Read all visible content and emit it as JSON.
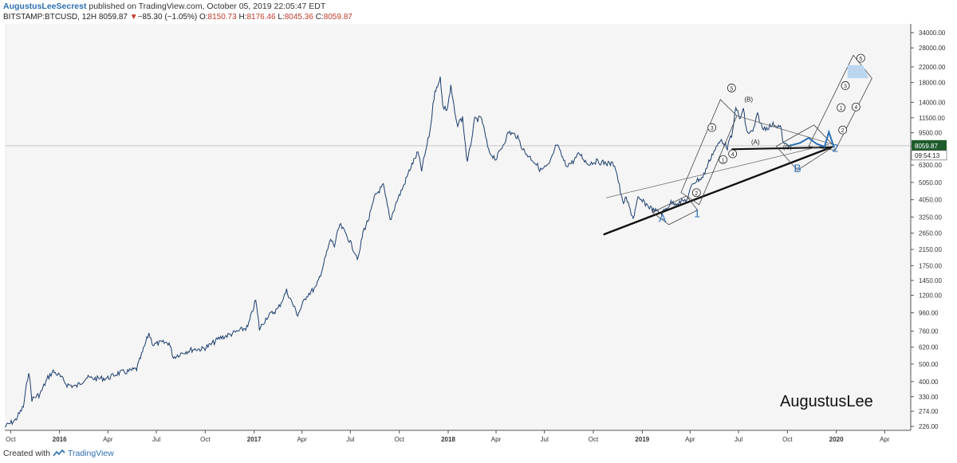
{
  "header": {
    "author": "AugustusLeeSecrest",
    "published_text": " published on TradingView.com, October 05, 2019 22:05:47 EDT",
    "symbol": "BITSTAMP:BTCUSD, 12H",
    "last": "8059.87",
    "change_arrow": "▼",
    "change": "−85.30 (−1.05%)",
    "o_label": "O:",
    "o_value": "8150.73",
    "h_label": "H:",
    "h_value": "8176.46",
    "l_label": "L:",
    "l_value": "8045.36",
    "c_label": "C:",
    "c_value": "8059.87"
  },
  "footer": {
    "created_with": "Created with",
    "brand": "TradingView"
  },
  "colors": {
    "price_line": "#1c3d6e",
    "plot_bg": "#f5f5f5",
    "current_price_badge": "#1e5c2e",
    "wave_blue": "#2c6fb3",
    "target_zone": "#bcd6f0"
  },
  "chart_data": {
    "type": "line",
    "title": "",
    "xlabel": "",
    "ylabel": "",
    "y_scale": "log",
    "x_range": [
      "2015-09-20",
      "2020-05-20"
    ],
    "y_range": [
      215,
      38000
    ],
    "grid": true,
    "y_ticks": [
      "34000.00",
      "28000.00",
      "22000.00",
      "18000.00",
      "14000.00",
      "11500.00",
      "9500.00",
      "8000.00",
      "6300.00",
      "5050.00",
      "4050.00",
      "3250.00",
      "2650.00",
      "2150.00",
      "1750.00",
      "1450.00",
      "1200.00",
      "960.00",
      "760.00",
      "620.00",
      "500.00",
      "400.00",
      "330.00",
      "274.00",
      "226.00"
    ],
    "x_ticks": [
      {
        "label": "Oct",
        "date": "2015-10-01",
        "bold": false
      },
      {
        "label": "2016",
        "date": "2016-01-01",
        "bold": true
      },
      {
        "label": "Apr",
        "date": "2016-04-01",
        "bold": false
      },
      {
        "label": "Jul",
        "date": "2016-07-01",
        "bold": false
      },
      {
        "label": "Oct",
        "date": "2016-10-01",
        "bold": false
      },
      {
        "label": "2017",
        "date": "2017-01-01",
        "bold": true
      },
      {
        "label": "Apr",
        "date": "2017-04-01",
        "bold": false
      },
      {
        "label": "Jul",
        "date": "2017-07-01",
        "bold": false
      },
      {
        "label": "Oct",
        "date": "2017-10-01",
        "bold": false
      },
      {
        "label": "2018",
        "date": "2018-01-01",
        "bold": true
      },
      {
        "label": "Apr",
        "date": "2018-04-01",
        "bold": false
      },
      {
        "label": "Jul",
        "date": "2018-07-01",
        "bold": false
      },
      {
        "label": "Oct",
        "date": "2018-10-01",
        "bold": false
      },
      {
        "label": "2019",
        "date": "2019-01-01",
        "bold": true
      },
      {
        "label": "Apr",
        "date": "2019-04-01",
        "bold": false
      },
      {
        "label": "Jul",
        "date": "2019-07-01",
        "bold": false
      },
      {
        "label": "Oct",
        "date": "2019-10-01",
        "bold": false
      },
      {
        "label": "2020",
        "date": "2020-01-01",
        "bold": true
      },
      {
        "label": "Apr",
        "date": "2020-04-01",
        "bold": false
      }
    ],
    "current_price": {
      "value": 8059.87,
      "label": "8059.87",
      "countdown": "09:54:13"
    },
    "series": [
      {
        "points": [
          [
            "2015-09-20",
            225
          ],
          [
            "2015-10-10",
            245
          ],
          [
            "2015-10-25",
            290
          ],
          [
            "2015-11-04",
            460
          ],
          [
            "2015-11-10",
            320
          ],
          [
            "2015-11-25",
            340
          ],
          [
            "2015-12-10",
            420
          ],
          [
            "2015-12-20",
            455
          ],
          [
            "2016-01-01",
            430
          ],
          [
            "2016-01-15",
            385
          ],
          [
            "2016-02-01",
            375
          ],
          [
            "2016-02-20",
            420
          ],
          [
            "2016-03-10",
            415
          ],
          [
            "2016-04-01",
            418
          ],
          [
            "2016-04-20",
            445
          ],
          [
            "2016-05-10",
            455
          ],
          [
            "2016-05-25",
            470
          ],
          [
            "2016-06-05",
            580
          ],
          [
            "2016-06-17",
            740
          ],
          [
            "2016-06-25",
            640
          ],
          [
            "2016-07-10",
            655
          ],
          [
            "2016-07-25",
            655
          ],
          [
            "2016-08-02",
            545
          ],
          [
            "2016-08-20",
            580
          ],
          [
            "2016-09-10",
            605
          ],
          [
            "2016-09-25",
            605
          ],
          [
            "2016-10-10",
            635
          ],
          [
            "2016-10-28",
            695
          ],
          [
            "2016-11-15",
            725
          ],
          [
            "2016-12-05",
            765
          ],
          [
            "2016-12-20",
            800
          ],
          [
            "2017-01-04",
            1130
          ],
          [
            "2017-01-11",
            780
          ],
          [
            "2017-01-25",
            910
          ],
          [
            "2017-02-15",
            1010
          ],
          [
            "2017-03-03",
            1270
          ],
          [
            "2017-03-24",
            935
          ],
          [
            "2017-04-10",
            1200
          ],
          [
            "2017-04-28",
            1330
          ],
          [
            "2017-05-10",
            1720
          ],
          [
            "2017-05-25",
            2450
          ],
          [
            "2017-06-01",
            2250
          ],
          [
            "2017-06-11",
            2950
          ],
          [
            "2017-06-25",
            2550
          ],
          [
            "2017-07-16",
            1900
          ],
          [
            "2017-07-25",
            2700
          ],
          [
            "2017-08-05",
            3200
          ],
          [
            "2017-08-17",
            4300
          ],
          [
            "2017-09-01",
            4850
          ],
          [
            "2017-09-14",
            3100
          ],
          [
            "2017-09-25",
            3900
          ],
          [
            "2017-10-10",
            4900
          ],
          [
            "2017-10-21",
            6000
          ],
          [
            "2017-11-05",
            7400
          ],
          [
            "2017-11-12",
            5900
          ],
          [
            "2017-11-28",
            9800
          ],
          [
            "2017-12-07",
            16500
          ],
          [
            "2017-12-12",
            16800
          ],
          [
            "2017-12-17",
            19700
          ],
          [
            "2017-12-22",
            13200
          ],
          [
            "2017-12-30",
            12800
          ],
          [
            "2018-01-06",
            17000
          ],
          [
            "2018-01-17",
            10500
          ],
          [
            "2018-01-28",
            11500
          ],
          [
            "2018-02-06",
            6400
          ],
          [
            "2018-02-20",
            11200
          ],
          [
            "2018-03-05",
            11400
          ],
          [
            "2018-03-18",
            7500
          ],
          [
            "2018-04-01",
            6800
          ],
          [
            "2018-04-12",
            7900
          ],
          [
            "2018-04-25",
            9600
          ],
          [
            "2018-05-10",
            9100
          ],
          [
            "2018-05-25",
            7400
          ],
          [
            "2018-06-10",
            6700
          ],
          [
            "2018-06-24",
            5900
          ],
          [
            "2018-07-10",
            6300
          ],
          [
            "2018-07-24",
            8200
          ],
          [
            "2018-08-10",
            6300
          ],
          [
            "2018-08-22",
            6500
          ],
          [
            "2018-09-05",
            7300
          ],
          [
            "2018-09-20",
            6400
          ],
          [
            "2018-10-05",
            6600
          ],
          [
            "2018-10-25",
            6450
          ],
          [
            "2018-11-10",
            6350
          ],
          [
            "2018-11-15",
            5500
          ],
          [
            "2018-11-25",
            3900
          ],
          [
            "2018-12-02",
            4100
          ],
          [
            "2018-12-15",
            3200
          ],
          [
            "2018-12-24",
            4100
          ],
          [
            "2019-01-05",
            3900
          ],
          [
            "2019-01-22",
            3550
          ],
          [
            "2019-02-07",
            3400
          ],
          [
            "2019-02-24",
            3900
          ],
          [
            "2019-03-12",
            3900
          ],
          [
            "2019-03-28",
            4100
          ],
          [
            "2019-04-05",
            5000
          ],
          [
            "2019-04-25",
            5400
          ],
          [
            "2019-05-12",
            7200
          ],
          [
            "2019-05-30",
            8700
          ],
          [
            "2019-06-10",
            7900
          ],
          [
            "2019-06-20",
            9500
          ],
          [
            "2019-06-26",
            13500
          ],
          [
            "2019-07-03",
            11200
          ],
          [
            "2019-07-10",
            12800
          ],
          [
            "2019-07-17",
            9500
          ],
          [
            "2019-07-28",
            9600
          ],
          [
            "2019-08-06",
            12000
          ],
          [
            "2019-08-15",
            10000
          ],
          [
            "2019-08-25",
            10200
          ],
          [
            "2019-09-06",
            10600
          ],
          [
            "2019-09-18",
            10200
          ],
          [
            "2019-09-24",
            8200
          ],
          [
            "2019-10-05",
            8060
          ]
        ]
      }
    ],
    "annotations": [
      {
        "label": "A",
        "date": "2019-02-08",
        "price": 3060
      },
      {
        "label": "1",
        "date": "2019-04-14",
        "price": 3250
      },
      {
        "label": "B",
        "date": "2019-10-20",
        "price": 5750
      },
      {
        "label": "2",
        "date": "2019-12-30",
        "price": 7450
      },
      {
        "label": "(A)",
        "date": "2019-08-02",
        "price": 8200
      },
      {
        "label": "(B)",
        "date": "2019-07-20",
        "price": 14100
      },
      {
        "label": "(C)",
        "date": "2019-10-01",
        "price": 7700
      },
      {
        "label": "1",
        "date": "2019-06-02",
        "price": 6550,
        "circled": true
      },
      {
        "label": "2",
        "date": "2019-04-13",
        "price": 4300,
        "circled": true
      },
      {
        "label": "3",
        "date": "2019-05-12",
        "price": 9850,
        "circled": true
      },
      {
        "label": "4",
        "date": "2019-06-20",
        "price": 7050,
        "circled": true
      },
      {
        "label": "5",
        "date": "2019-06-18",
        "price": 16300,
        "circled": true
      },
      {
        "label": "1",
        "date": "2020-01-10",
        "price": 12700,
        "circled": true
      },
      {
        "label": "2",
        "date": "2020-01-13",
        "price": 9550,
        "circled": true
      },
      {
        "label": "3",
        "date": "2020-01-18",
        "price": 16800,
        "circled": true
      },
      {
        "label": "4",
        "date": "2020-02-07",
        "price": 12800,
        "circled": true
      },
      {
        "label": "5",
        "date": "2020-02-16",
        "price": 23800,
        "circled": true
      }
    ],
    "watermark": "AugustusLee"
  }
}
